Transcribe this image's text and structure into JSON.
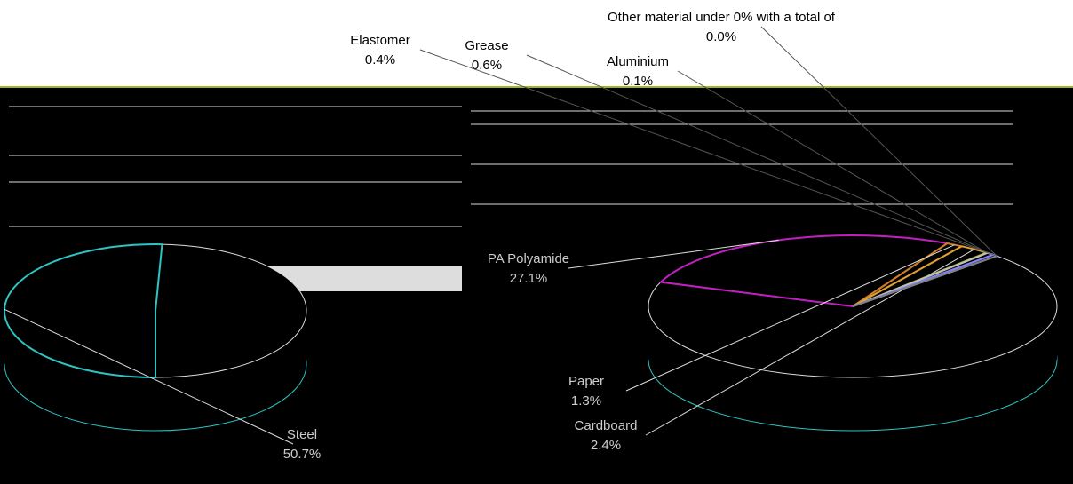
{
  "chart_data": [
    {
      "type": "pie",
      "categories": [
        "Steel"
      ],
      "values": [
        50.7
      ],
      "value_labels": [
        "50.7%"
      ],
      "colors": [
        "#2ec4c4"
      ]
    },
    {
      "type": "pie",
      "categories": [
        "PA Polyamide",
        "Paper",
        "Cardboard",
        "Aluminium",
        "Grease",
        "Elastomer",
        "Other material under 0% with a total of"
      ],
      "values": [
        27.1,
        1.3,
        2.4,
        0.1,
        0.6,
        0.4,
        0
      ],
      "value_labels": [
        "27.1%",
        "1.3%",
        "2.4%",
        "0.1%",
        "0.6%",
        "0.4%",
        "0.0%"
      ],
      "colors": [
        "#c020c0",
        "#d08020",
        "#e0a030",
        "#9ab820",
        "#c0c0c0",
        "#8080ff",
        "#808080"
      ]
    }
  ]
}
